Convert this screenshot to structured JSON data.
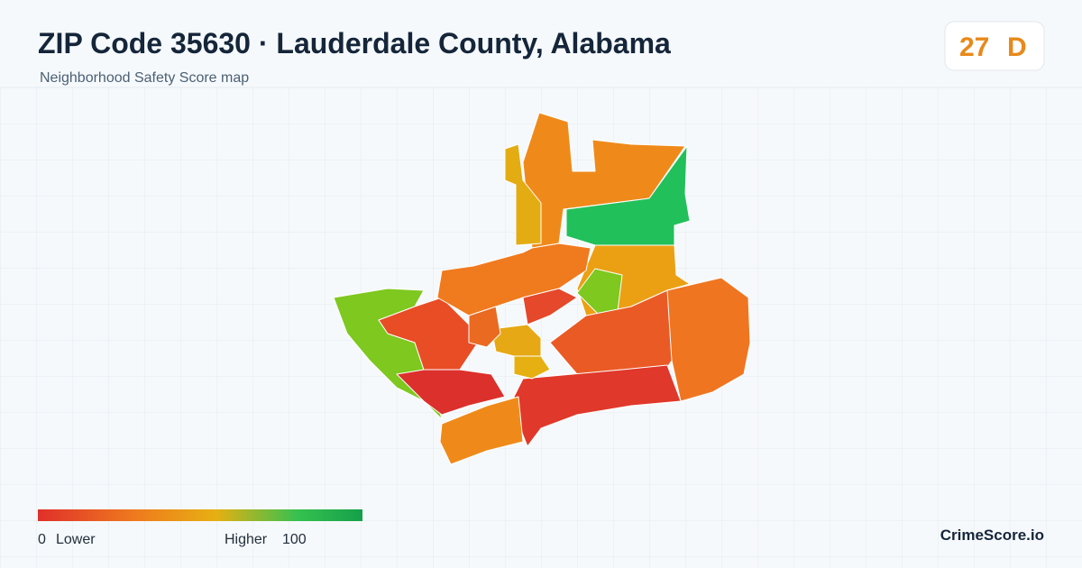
{
  "header": {
    "title": "ZIP Code 35630 · Lauderdale County, Alabama",
    "subtitle": "Neighborhood Safety Score map"
  },
  "score": {
    "value": 27,
    "grade": "D"
  },
  "legend": {
    "min": 0,
    "min_label": "Lower",
    "max_label": "Higher",
    "max": 100
  },
  "footer": {
    "brand": "CrimeScore.io"
  }
}
